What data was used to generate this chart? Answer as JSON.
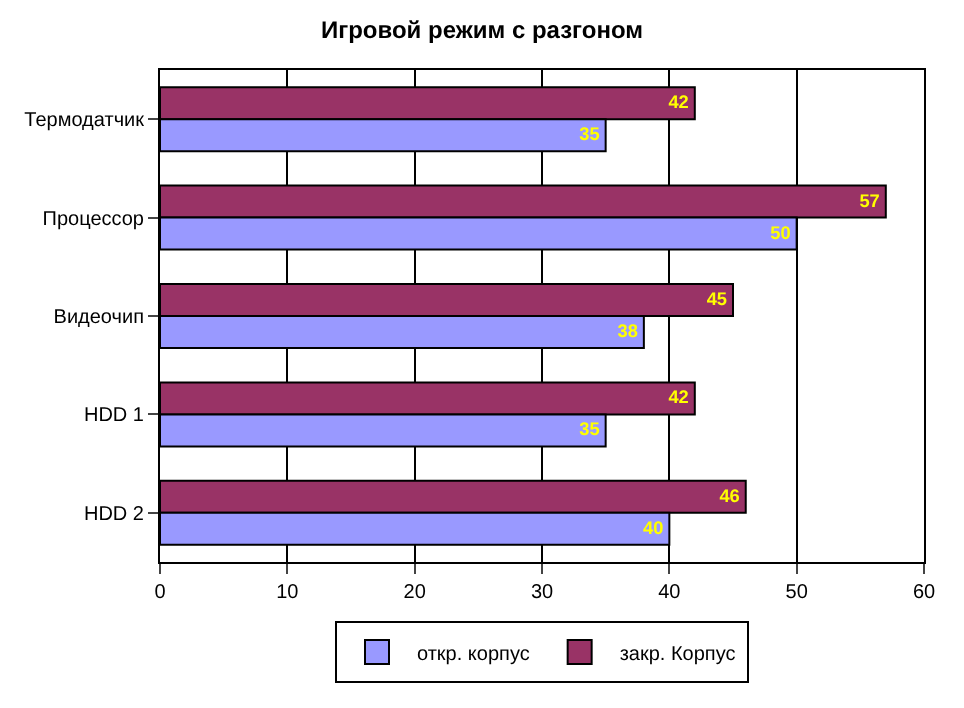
{
  "chart_data": {
    "type": "bar",
    "orientation": "horizontal",
    "title": "Игровой режим с разгоном",
    "categories": [
      "Термодатчик",
      "Процессор",
      "Видеочип",
      "HDD 1",
      "HDD 2"
    ],
    "series": [
      {
        "name": "откр. корпус",
        "color": "#9999ff",
        "values": [
          35,
          50,
          38,
          35,
          40
        ]
      },
      {
        "name": "закр. Корпус",
        "color": "#993366",
        "values": [
          42,
          57,
          45,
          42,
          46
        ]
      }
    ],
    "xlim": [
      0,
      60
    ],
    "xticks": [
      0,
      10,
      20,
      30,
      40,
      50,
      60
    ],
    "grid": "x",
    "legend": "bottom",
    "data_labels": true
  }
}
